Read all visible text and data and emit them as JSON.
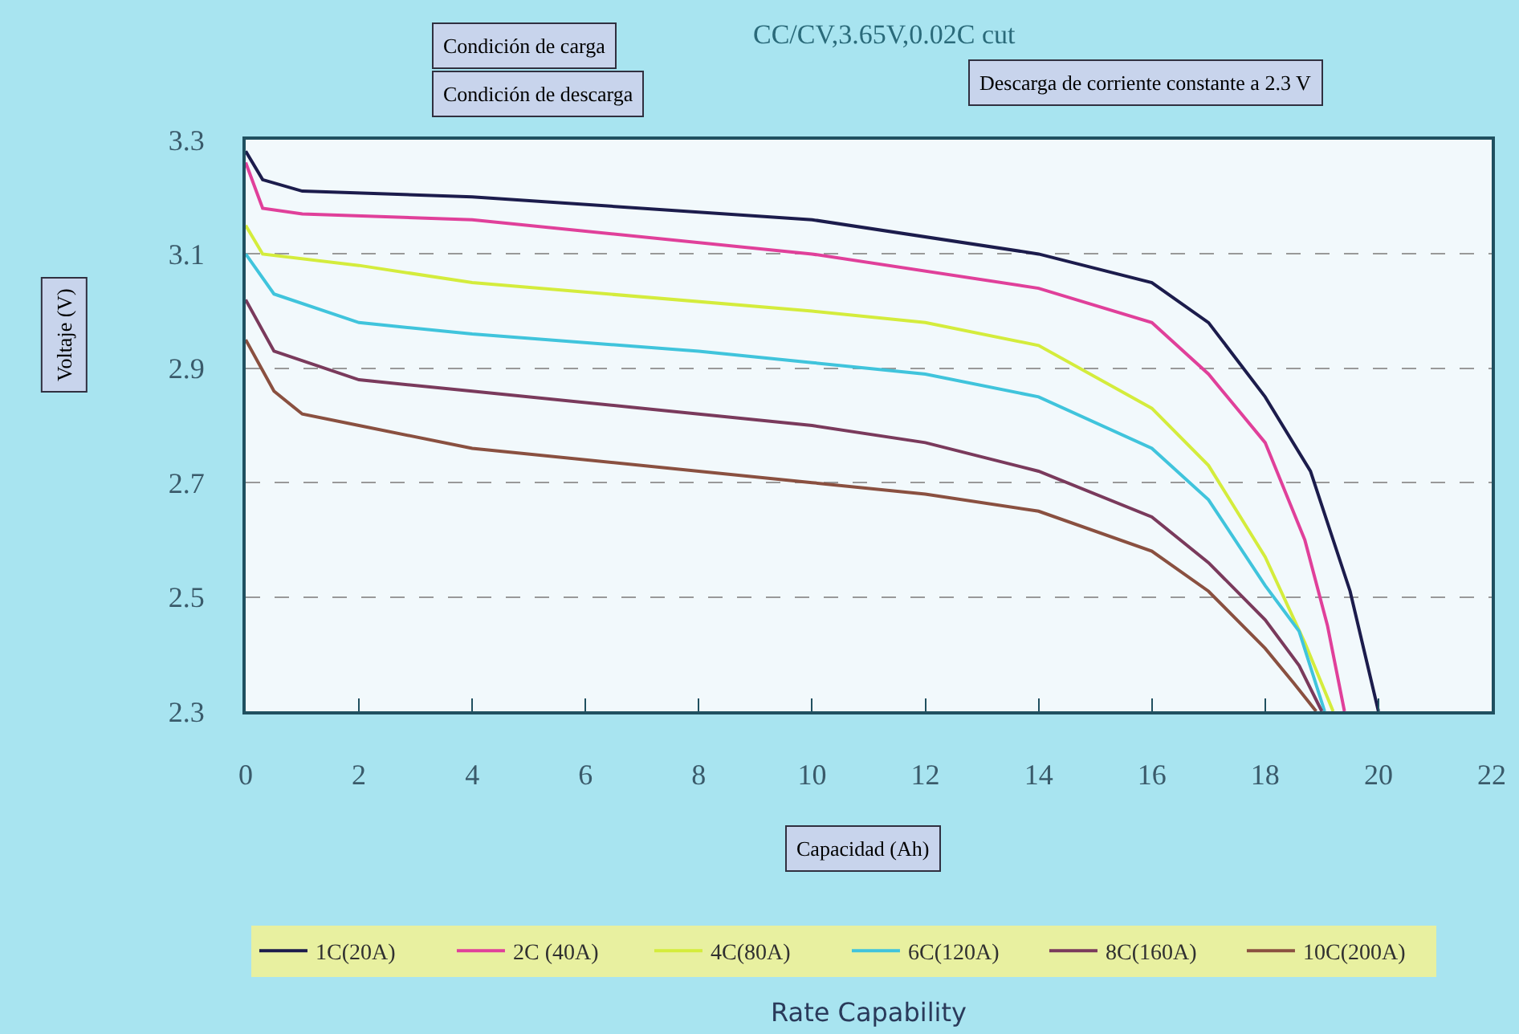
{
  "chart_data": {
    "type": "line",
    "xlabel": "Capacidad (Ah)",
    "ylabel": "Voltaje (V)",
    "annotations": [
      "Condición de carga",
      "CC/CV,3.65V,0.02C cut",
      "Condición de descarga",
      "Descarga de corriente constante a 2.3 V",
      "Rate Capability"
    ],
    "xlim": [
      0,
      22
    ],
    "xticks": [
      0,
      2,
      4,
      6,
      8,
      10,
      12,
      14,
      16,
      18,
      20,
      22
    ],
    "ylim": [
      2.3,
      3.3
    ],
    "yticks": [
      2.3,
      2.5,
      2.7,
      2.9,
      3.1,
      3.3
    ],
    "grid": "y",
    "legend": "bottom",
    "line_style": "solid",
    "marker": "none",
    "series": [
      {
        "name": "1C(20A)",
        "color": "#1c1c4c",
        "x": [
          0,
          0.3,
          1,
          4,
          10,
          14,
          16,
          17,
          18,
          18.8,
          19.5,
          20.0
        ],
        "values": [
          3.28,
          3.23,
          3.21,
          3.2,
          3.16,
          3.1,
          3.05,
          2.98,
          2.85,
          2.72,
          2.51,
          2.3
        ]
      },
      {
        "name": "2C (40A)",
        "color": "#e0409a",
        "x": [
          0,
          0.3,
          1,
          4,
          10,
          14,
          16,
          17,
          18,
          18.7,
          19.1,
          19.4
        ],
        "values": [
          3.26,
          3.18,
          3.17,
          3.16,
          3.1,
          3.04,
          2.98,
          2.89,
          2.77,
          2.6,
          2.45,
          2.3
        ]
      },
      {
        "name": "4C(80A)",
        "color": "#d4ec3c",
        "x": [
          0,
          0.3,
          2,
          4,
          10,
          12,
          14,
          16,
          17,
          18,
          18.7,
          19.2
        ],
        "values": [
          3.15,
          3.1,
          3.08,
          3.05,
          3.0,
          2.98,
          2.94,
          2.83,
          2.73,
          2.57,
          2.42,
          2.3
        ]
      },
      {
        "name": "6C(120A)",
        "color": "#40c4dc",
        "x": [
          0,
          0.5,
          2,
          4,
          8,
          10,
          12,
          14,
          16,
          17,
          18,
          18.6,
          19.05
        ],
        "values": [
          3.1,
          3.03,
          2.98,
          2.96,
          2.93,
          2.91,
          2.89,
          2.85,
          2.76,
          2.67,
          2.52,
          2.44,
          2.3
        ]
      },
      {
        "name": "8C(160A)",
        "color": "#7a3a5c",
        "x": [
          0,
          0.5,
          2,
          4,
          8,
          10,
          12,
          14,
          16,
          17,
          18,
          18.6,
          19.0
        ],
        "values": [
          3.02,
          2.93,
          2.88,
          2.86,
          2.82,
          2.8,
          2.77,
          2.72,
          2.64,
          2.56,
          2.46,
          2.38,
          2.3
        ]
      },
      {
        "name": "10C(200A)",
        "color": "#8a5040",
        "x": [
          0,
          0.5,
          1,
          2,
          4,
          8,
          10,
          12,
          14,
          16,
          17,
          18,
          18.5,
          18.9
        ],
        "values": [
          2.95,
          2.86,
          2.82,
          2.8,
          2.76,
          2.72,
          2.7,
          2.68,
          2.65,
          2.58,
          2.51,
          2.41,
          2.35,
          2.3
        ]
      }
    ]
  }
}
